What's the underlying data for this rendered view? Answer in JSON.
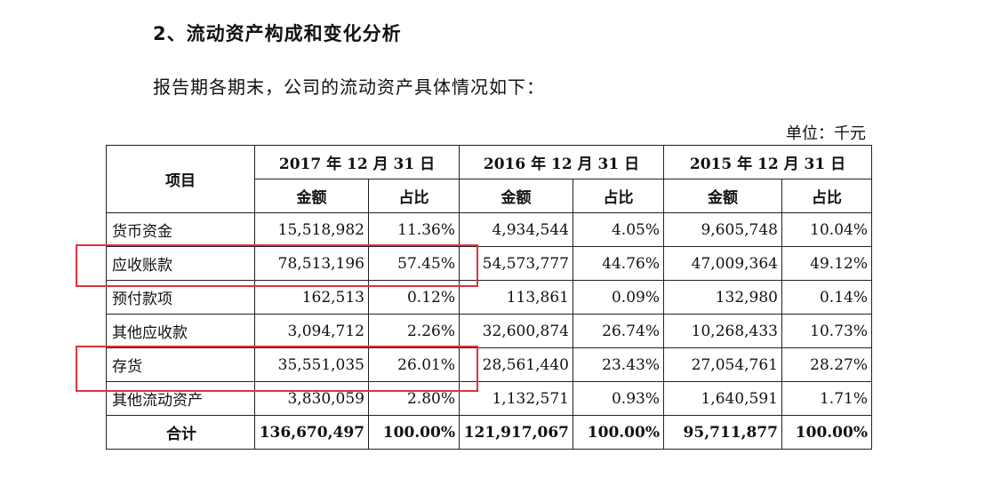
{
  "heading": "2、流动资产构成和变化分析",
  "intro": "报告期各期末，公司的流动资产具体情况如下：",
  "unit": "单位：千元",
  "table": {
    "item_header": "项目",
    "periods": [
      "2017 年 12 月 31 日",
      "2016 年 12 月 31 日",
      "2015 年 12 月 31 日"
    ],
    "amount_label": "金额",
    "ratio_label": "占比",
    "rows": [
      {
        "name": "货币资金",
        "values": [
          "15,518,982",
          "11.36%",
          "4,934,544",
          "4.05%",
          "9,605,748",
          "10.04%"
        ]
      },
      {
        "name": "应收账款",
        "values": [
          "78,513,196",
          "57.45%",
          "54,573,777",
          "44.76%",
          "47,009,364",
          "49.12%"
        ]
      },
      {
        "name": "预付款项",
        "values": [
          "162,513",
          "0.12%",
          "113,861",
          "0.09%",
          "132,980",
          "0.14%"
        ]
      },
      {
        "name": "其他应收款",
        "values": [
          "3,094,712",
          "2.26%",
          "32,600,874",
          "26.74%",
          "10,268,433",
          "10.73%"
        ]
      },
      {
        "name": "存货",
        "values": [
          "35,551,035",
          "26.01%",
          "28,561,440",
          "23.43%",
          "27,054,761",
          "28.27%"
        ]
      },
      {
        "name": "其他流动资产",
        "values": [
          "3,830,059",
          "2.80%",
          "1,132,571",
          "0.93%",
          "1,640,591",
          "1.71%"
        ]
      },
      {
        "name": "合计",
        "values": [
          "136,670,497",
          "100.00%",
          "121,917,067",
          "100.00%",
          "95,711,877",
          "100.00%"
        ]
      }
    ]
  },
  "highlight_color": "#e0323c"
}
